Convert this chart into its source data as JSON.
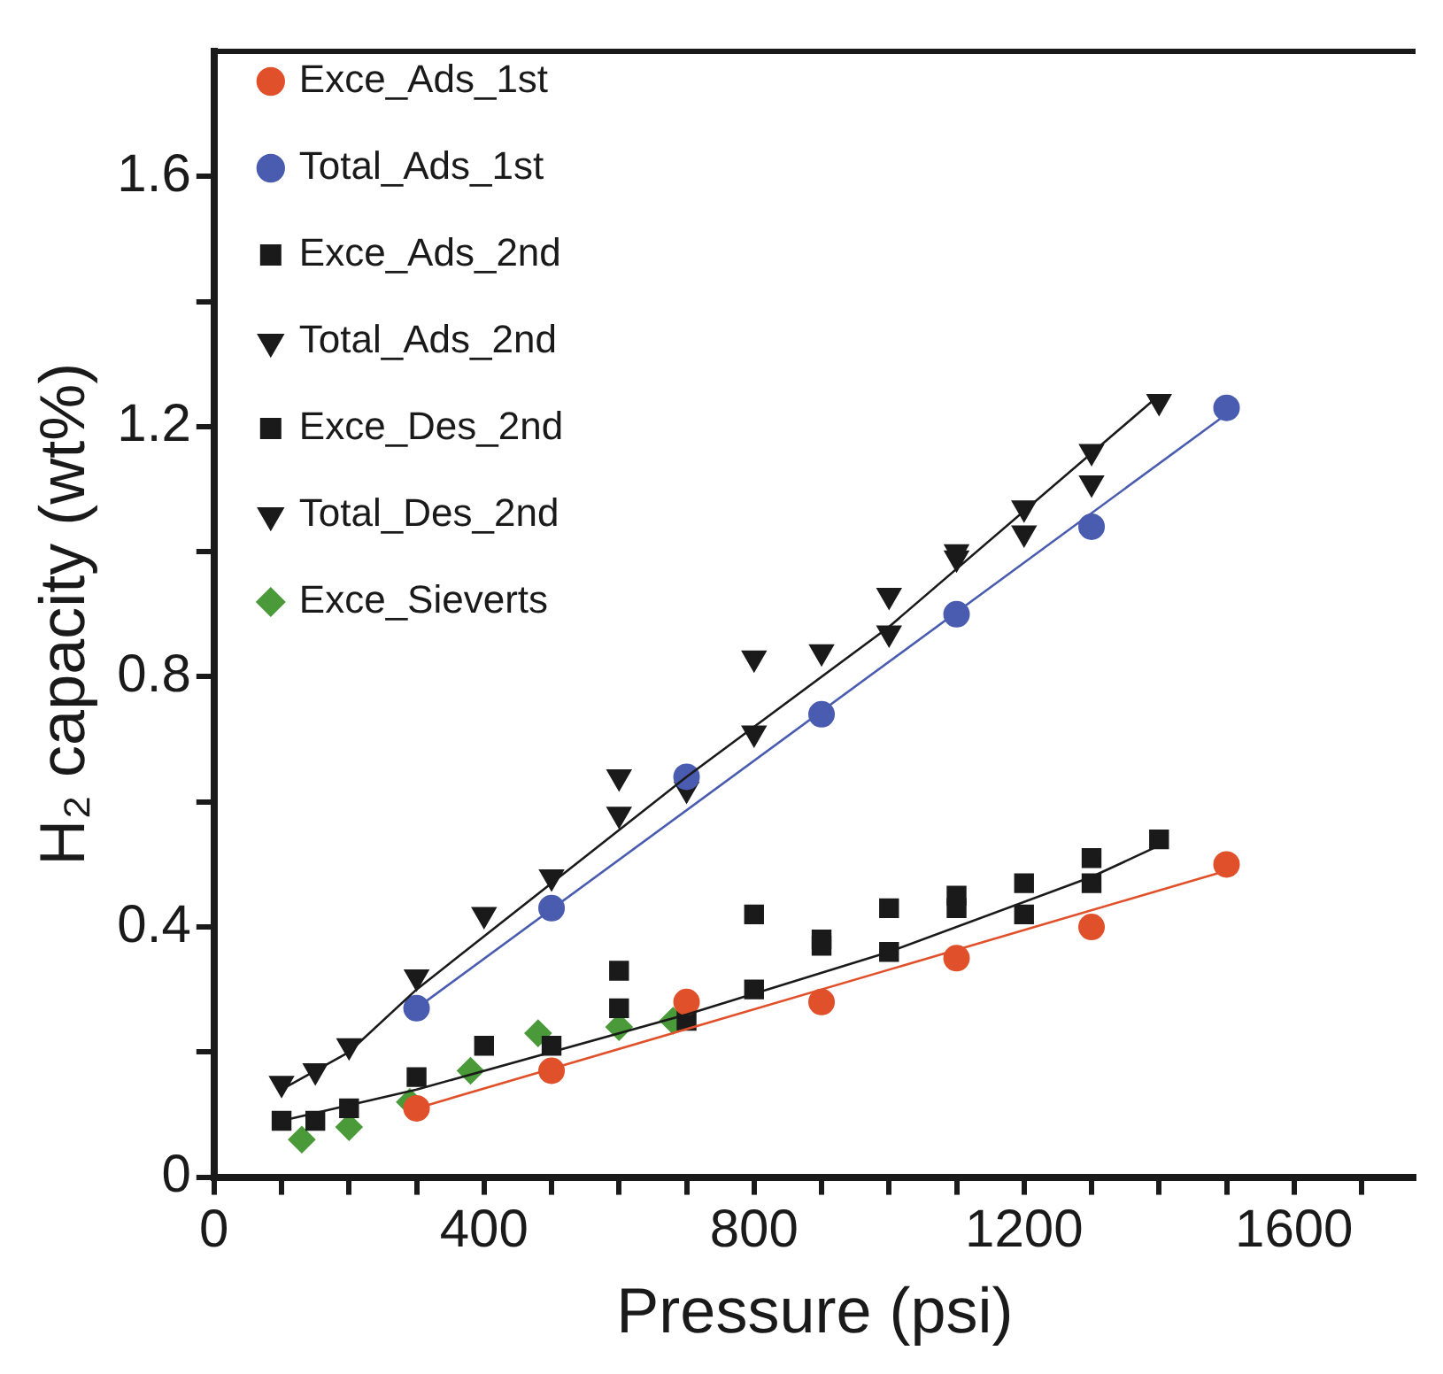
{
  "chart_data": {
    "type": "scatter",
    "xlabel": "Pressure (psi)",
    "ylabel": "H₂ capacity (wt%)",
    "xlim": [
      0,
      1780
    ],
    "ylim": [
      0,
      1.8
    ],
    "xticks": [
      0,
      {
        "value": 100,
        "label": null
      },
      {
        "value": 200,
        "label": null
      },
      {
        "value": 300,
        "label": null
      },
      400,
      {
        "value": 500,
        "label": null
      },
      {
        "value": 600,
        "label": null
      },
      {
        "value": 700,
        "label": null
      },
      800,
      {
        "value": 900,
        "label": null
      },
      {
        "value": 1000,
        "label": null
      },
      {
        "value": 1100,
        "label": null
      },
      1200,
      {
        "value": 1300,
        "label": null
      },
      {
        "value": 1400,
        "label": null
      },
      {
        "value": 1500,
        "label": null
      },
      1600,
      {
        "value": 1700,
        "label": null
      }
    ],
    "yticks": [
      0,
      {
        "value": 0.2,
        "label": null
      },
      0.4,
      {
        "value": 0.6,
        "label": null
      },
      0.8,
      {
        "value": 1.0,
        "label": null
      },
      1.2,
      {
        "value": 1.4,
        "label": null
      },
      1.6
    ],
    "grid": false,
    "legend": "top left",
    "series": [
      {
        "name": "Exce_Ads_1st",
        "color": "#e0502a",
        "marker": "circle",
        "x": [
          300,
          500,
          700,
          900,
          1100,
          1300,
          1500
        ],
        "values": [
          0.11,
          0.17,
          0.28,
          0.28,
          0.35,
          0.4,
          0.5
        ]
      },
      {
        "name": "Total_Ads_1st",
        "color": "#4a5cb0",
        "marker": "circle",
        "x": [
          300,
          500,
          700,
          900,
          1100,
          1300,
          1500
        ],
        "values": [
          0.27,
          0.43,
          0.64,
          0.74,
          0.9,
          1.04,
          1.23
        ]
      },
      {
        "name": "Exce_Ads_2nd",
        "color": "#1a1a1a",
        "marker": "square",
        "x": [
          100,
          150,
          200,
          300,
          500,
          600,
          700,
          800,
          900,
          1000,
          1100,
          1200,
          1300,
          1400
        ],
        "values": [
          0.09,
          0.09,
          0.11,
          0.16,
          0.21,
          0.33,
          0.25,
          0.3,
          0.37,
          0.36,
          0.43,
          0.47,
          0.47,
          0.54
        ]
      },
      {
        "name": "Total_Ads_2nd",
        "color": "#1a1a1a",
        "marker": "triangle",
        "x": [
          100,
          150,
          200,
          300,
          500,
          600,
          700,
          800,
          1000,
          1100,
          1200,
          1300,
          1400
        ],
        "values": [
          0.15,
          0.17,
          0.21,
          0.32,
          0.48,
          0.64,
          0.62,
          0.71,
          0.87,
          0.99,
          1.07,
          1.11,
          1.24
        ]
      },
      {
        "name": "Exce_Des_2nd",
        "color": "#1a1a1a",
        "marker": "square",
        "x": [
          400,
          600,
          800,
          900,
          1000,
          1100,
          1200,
          1300
        ],
        "values": [
          0.21,
          0.27,
          0.42,
          0.38,
          0.43,
          0.45,
          0.42,
          0.51
        ]
      },
      {
        "name": "Total_Des_2nd",
        "color": "#1a1a1a",
        "marker": "triangle",
        "x": [
          400,
          600,
          800,
          900,
          1000,
          1100,
          1200,
          1300
        ],
        "values": [
          0.42,
          0.58,
          0.83,
          0.84,
          0.93,
          1.0,
          1.03,
          1.16
        ]
      },
      {
        "name": "Exce_Sieverts",
        "color": "#4a9a3a",
        "marker": "diamond",
        "x": [
          130,
          200,
          290,
          380,
          480,
          600,
          680
        ],
        "values": [
          0.06,
          0.08,
          0.12,
          0.17,
          0.23,
          0.24,
          0.25
        ]
      },
      {
        "type": "line",
        "color": "#e0502a",
        "marker": "none",
        "x": [
          300,
          1500
        ],
        "values": [
          0.11,
          0.49
        ]
      },
      {
        "type": "line",
        "color": "#4a5cb0",
        "marker": "none",
        "x": [
          300,
          1500
        ],
        "values": [
          0.27,
          1.22
        ]
      },
      {
        "type": "line",
        "color": "#1a1a1a",
        "marker": "none",
        "x": [
          100,
          300,
          700,
          1000,
          1300,
          1400
        ],
        "values": [
          0.09,
          0.14,
          0.26,
          0.36,
          0.48,
          0.53
        ]
      },
      {
        "type": "line",
        "color": "#1a1a1a",
        "marker": "none",
        "x": [
          100,
          200,
          300,
          700,
          1000,
          1400
        ],
        "values": [
          0.14,
          0.2,
          0.3,
          0.64,
          0.88,
          1.25
        ]
      }
    ]
  }
}
